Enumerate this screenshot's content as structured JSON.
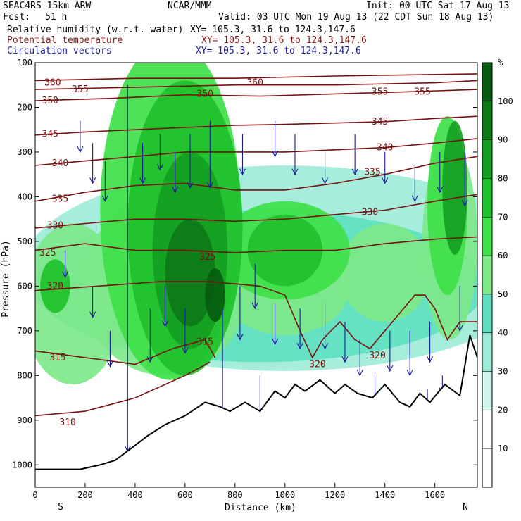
{
  "header": {
    "model": "SEAC4RS 15km ARW",
    "org": "NCAR/MMM",
    "init": "Init: 00 UTC Sat 17 Aug 13",
    "fcst_label": "Fcst:",
    "fcst_value": "51 h",
    "valid": "Valid: 03 UTC Mon 19 Aug 13 (22 CDT Sun 18 Aug 13)",
    "fields": [
      {
        "name": "Relative humidity (w.r.t. water)",
        "xy": "XY= 105.3, 31.6 to 124.3,147.6",
        "color": "#000000"
      },
      {
        "name": "Potential temperature",
        "xy": "XY= 105.3, 31.6 to 124.3,147.6",
        "color": "#8b1a1a"
      },
      {
        "name": "Circulation vectors",
        "xy": "XY= 105.3, 31.6 to 124.3,147.6",
        "color": "#1a1a9c"
      }
    ]
  },
  "chart_data": {
    "type": "heatmap",
    "title": "Relative humidity (w.r.t. water)",
    "xlabel": "Distance (km)",
    "ylabel": "Pressure (hPa)",
    "xlim": [
      0,
      1770
    ],
    "ylim": [
      1050,
      100
    ],
    "x_ticks": [
      0,
      200,
      400,
      600,
      800,
      1000,
      1200,
      1400,
      1600
    ],
    "y_ticks": [
      100,
      200,
      300,
      400,
      500,
      600,
      700,
      800,
      900,
      1000
    ],
    "x_end_labels": {
      "left": "S",
      "right": "N"
    },
    "colorbar": {
      "unit": "%",
      "levels": [
        10,
        20,
        30,
        40,
        50,
        60,
        70,
        80,
        90,
        100
      ],
      "colors": [
        "#ffffff",
        "#ffffff",
        "#cff5ec",
        "#9eebd9",
        "#5fdfc0",
        "#7ee88a",
        "#3fe04a",
        "#1fc02d",
        "#159f22",
        "#0c7a18",
        "#075c10"
      ]
    },
    "terrain_pressure": [
      {
        "x": 0,
        "p": 1010
      },
      {
        "x": 180,
        "p": 1010
      },
      {
        "x": 260,
        "p": 1000
      },
      {
        "x": 320,
        "p": 990
      },
      {
        "x": 380,
        "p": 965
      },
      {
        "x": 450,
        "p": 935
      },
      {
        "x": 520,
        "p": 910
      },
      {
        "x": 600,
        "p": 890
      },
      {
        "x": 680,
        "p": 860
      },
      {
        "x": 740,
        "p": 870
      },
      {
        "x": 780,
        "p": 880
      },
      {
        "x": 840,
        "p": 860
      },
      {
        "x": 900,
        "p": 880
      },
      {
        "x": 960,
        "p": 835
      },
      {
        "x": 1000,
        "p": 850
      },
      {
        "x": 1040,
        "p": 820
      },
      {
        "x": 1080,
        "p": 835
      },
      {
        "x": 1140,
        "p": 810
      },
      {
        "x": 1200,
        "p": 840
      },
      {
        "x": 1240,
        "p": 820
      },
      {
        "x": 1290,
        "p": 840
      },
      {
        "x": 1350,
        "p": 850
      },
      {
        "x": 1400,
        "p": 820
      },
      {
        "x": 1460,
        "p": 860
      },
      {
        "x": 1500,
        "p": 870
      },
      {
        "x": 1540,
        "p": 840
      },
      {
        "x": 1580,
        "p": 860
      },
      {
        "x": 1640,
        "p": 820
      },
      {
        "x": 1700,
        "p": 845
      },
      {
        "x": 1740,
        "p": 710
      },
      {
        "x": 1770,
        "p": 760
      }
    ],
    "theta_contours": [
      {
        "value": 310,
        "labels": [
          {
            "x": 130,
            "p": 905
          }
        ],
        "pts": [
          [
            0,
            890
          ],
          [
            200,
            880
          ],
          [
            400,
            850
          ],
          [
            600,
            800
          ],
          [
            700,
            770
          ]
        ]
      },
      {
        "value": 315,
        "labels": [
          {
            "x": 90,
            "p": 760
          },
          {
            "x": 680,
            "p": 725
          }
        ],
        "pts": [
          [
            0,
            745
          ],
          [
            200,
            760
          ],
          [
            400,
            775
          ],
          [
            550,
            740
          ],
          [
            680,
            720
          ],
          [
            720,
            760
          ]
        ]
      },
      {
        "value": 320,
        "labels": [
          {
            "x": 80,
            "p": 600
          },
          {
            "x": 1130,
            "p": 775
          },
          {
            "x": 1370,
            "p": 755
          }
        ],
        "pts": [
          [
            0,
            610
          ],
          [
            250,
            600
          ],
          [
            500,
            590
          ],
          [
            700,
            590
          ],
          [
            900,
            600
          ],
          [
            1000,
            620
          ],
          [
            1060,
            700
          ],
          [
            1110,
            760
          ],
          [
            1150,
            720
          ],
          [
            1220,
            680
          ],
          [
            1280,
            720
          ],
          [
            1340,
            740
          ],
          [
            1400,
            700
          ],
          [
            1460,
            660
          ],
          [
            1520,
            620
          ],
          [
            1560,
            620
          ],
          [
            1600,
            650
          ],
          [
            1650,
            720
          ],
          [
            1700,
            680
          ],
          [
            1770,
            680
          ]
        ]
      },
      {
        "value": 325,
        "labels": [
          {
            "x": 50,
            "p": 525
          },
          {
            "x": 690,
            "p": 535
          }
        ],
        "pts": [
          [
            0,
            520
          ],
          [
            200,
            505
          ],
          [
            400,
            520
          ],
          [
            600,
            520
          ],
          [
            800,
            525
          ],
          [
            1000,
            520
          ],
          [
            1200,
            520
          ],
          [
            1400,
            505
          ],
          [
            1600,
            495
          ],
          [
            1770,
            490
          ]
        ]
      },
      {
        "value": 330,
        "labels": [
          {
            "x": 80,
            "p": 465
          },
          {
            "x": 1340,
            "p": 435
          }
        ],
        "pts": [
          [
            0,
            470
          ],
          [
            200,
            460
          ],
          [
            400,
            450
          ],
          [
            600,
            450
          ],
          [
            800,
            455
          ],
          [
            1000,
            450
          ],
          [
            1200,
            440
          ],
          [
            1400,
            430
          ],
          [
            1600,
            410
          ],
          [
            1770,
            395
          ]
        ]
      },
      {
        "value": 335,
        "labels": [
          {
            "x": 100,
            "p": 405
          },
          {
            "x": 1350,
            "p": 345
          }
        ],
        "pts": [
          [
            0,
            410
          ],
          [
            200,
            390
          ],
          [
            400,
            375
          ],
          [
            600,
            370
          ],
          [
            800,
            385
          ],
          [
            1000,
            385
          ],
          [
            1200,
            370
          ],
          [
            1400,
            350
          ],
          [
            1600,
            325
          ],
          [
            1770,
            310
          ]
        ]
      },
      {
        "value": 340,
        "labels": [
          {
            "x": 100,
            "p": 325
          },
          {
            "x": 1400,
            "p": 290
          }
        ],
        "pts": [
          [
            0,
            330
          ],
          [
            200,
            320
          ],
          [
            400,
            310
          ],
          [
            600,
            300
          ],
          [
            800,
            300
          ],
          [
            1000,
            300
          ],
          [
            1200,
            295
          ],
          [
            1400,
            290
          ],
          [
            1600,
            280
          ],
          [
            1770,
            270
          ]
        ]
      },
      {
        "value": 345,
        "labels": [
          {
            "x": 60,
            "p": 260
          },
          {
            "x": 1380,
            "p": 232
          }
        ],
        "pts": [
          [
            0,
            262
          ],
          [
            200,
            255
          ],
          [
            400,
            250
          ],
          [
            600,
            245
          ],
          [
            800,
            240
          ],
          [
            1000,
            238
          ],
          [
            1200,
            235
          ],
          [
            1400,
            232
          ],
          [
            1600,
            225
          ],
          [
            1770,
            220
          ]
        ]
      },
      {
        "value": 350,
        "labels": [
          {
            "x": 60,
            "p": 185
          },
          {
            "x": 680,
            "p": 170
          }
        ],
        "pts": [
          [
            0,
            185
          ],
          [
            300,
            180
          ],
          [
            600,
            172
          ],
          [
            900,
            175
          ],
          [
            1200,
            170
          ],
          [
            1500,
            165
          ],
          [
            1770,
            160
          ]
        ]
      },
      {
        "value": 355,
        "labels": [
          {
            "x": 180,
            "p": 160
          },
          {
            "x": 1380,
            "p": 165
          },
          {
            "x": 1550,
            "p": 165
          }
        ],
        "pts": [
          [
            0,
            160
          ],
          [
            400,
            155
          ],
          [
            800,
            150
          ],
          [
            1200,
            150
          ],
          [
            1600,
            145
          ],
          [
            1770,
            140
          ]
        ]
      },
      {
        "value": 360,
        "labels": [
          {
            "x": 70,
            "p": 145
          },
          {
            "x": 880,
            "p": 145
          }
        ],
        "pts": [
          [
            0,
            140
          ],
          [
            400,
            135
          ],
          [
            800,
            135
          ],
          [
            1200,
            130
          ],
          [
            1770,
            125
          ]
        ]
      }
    ],
    "rh_blobs": [
      {
        "x": 1000,
        "p": 560,
        "rx": 1050,
        "rp": 230,
        "level": 30
      },
      {
        "x": 900,
        "p": 600,
        "rx": 900,
        "rp": 170,
        "level": 40
      },
      {
        "x": 150,
        "p": 640,
        "rx": 200,
        "rp": 180,
        "level": 50
      },
      {
        "x": 520,
        "p": 600,
        "rx": 330,
        "rp": 200,
        "level": 50
      },
      {
        "x": 1000,
        "p": 600,
        "rx": 260,
        "rp": 110,
        "level": 50
      },
      {
        "x": 1400,
        "p": 570,
        "rx": 180,
        "rp": 110,
        "level": 50
      },
      {
        "x": 1660,
        "p": 500,
        "rx": 110,
        "rp": 220,
        "level": 50
      },
      {
        "x": 540,
        "p": 430,
        "rx": 280,
        "rp": 380,
        "level": 60
      },
      {
        "x": 1000,
        "p": 520,
        "rx": 260,
        "rp": 110,
        "level": 60
      },
      {
        "x": 1650,
        "p": 420,
        "rx": 80,
        "rp": 200,
        "level": 60
      },
      {
        "x": 600,
        "p": 470,
        "rx": 230,
        "rp": 330,
        "level": 70
      },
      {
        "x": 1000,
        "p": 520,
        "rx": 150,
        "rp": 80,
        "level": 70
      },
      {
        "x": 80,
        "p": 600,
        "rx": 60,
        "rp": 60,
        "level": 70
      },
      {
        "x": 620,
        "p": 520,
        "rx": 150,
        "rp": 220,
        "level": 80
      },
      {
        "x": 1680,
        "p": 380,
        "rx": 50,
        "rp": 150,
        "level": 80
      },
      {
        "x": 620,
        "p": 570,
        "rx": 100,
        "rp": 120,
        "level": 90
      },
      {
        "x": 720,
        "p": 620,
        "rx": 40,
        "rp": 60,
        "level": 100
      }
    ],
    "wind_vectors": [
      {
        "x": 370,
        "p": 150,
        "dp": 820
      },
      {
        "x": 750,
        "p": 650,
        "dp": 260
      },
      {
        "x": 900,
        "p": 800,
        "dp": 170
      },
      {
        "x": 1360,
        "p": 800,
        "dp": 60
      },
      {
        "x": 1570,
        "p": 830,
        "dp": 70
      },
      {
        "x": 1630,
        "p": 800,
        "dp": 40
      },
      {
        "x": 180,
        "p": 230,
        "dp": 70
      },
      {
        "x": 230,
        "p": 280,
        "dp": 90
      },
      {
        "x": 280,
        "p": 320,
        "dp": 90
      },
      {
        "x": 430,
        "p": 280,
        "dp": 90
      },
      {
        "x": 500,
        "p": 260,
        "dp": 80
      },
      {
        "x": 560,
        "p": 300,
        "dp": 90
      },
      {
        "x": 620,
        "p": 260,
        "dp": 120
      },
      {
        "x": 700,
        "p": 230,
        "dp": 150
      },
      {
        "x": 830,
        "p": 260,
        "dp": 90
      },
      {
        "x": 960,
        "p": 230,
        "dp": 80
      },
      {
        "x": 1040,
        "p": 260,
        "dp": 90
      },
      {
        "x": 1160,
        "p": 300,
        "dp": 70
      },
      {
        "x": 1280,
        "p": 260,
        "dp": 90
      },
      {
        "x": 1400,
        "p": 300,
        "dp": 70
      },
      {
        "x": 1520,
        "p": 330,
        "dp": 80
      },
      {
        "x": 1620,
        "p": 300,
        "dp": 90
      },
      {
        "x": 1720,
        "p": 300,
        "dp": 120
      },
      {
        "x": 120,
        "p": 520,
        "dp": 60
      },
      {
        "x": 230,
        "p": 600,
        "dp": 70
      },
      {
        "x": 300,
        "p": 700,
        "dp": 80
      },
      {
        "x": 460,
        "p": 650,
        "dp": 120
      },
      {
        "x": 520,
        "p": 600,
        "dp": 90
      },
      {
        "x": 600,
        "p": 650,
        "dp": 100
      },
      {
        "x": 820,
        "p": 600,
        "dp": 120
      },
      {
        "x": 880,
        "p": 550,
        "dp": 100
      },
      {
        "x": 960,
        "p": 640,
        "dp": 90
      },
      {
        "x": 1060,
        "p": 650,
        "dp": 90
      },
      {
        "x": 1160,
        "p": 640,
        "dp": 100
      },
      {
        "x": 1240,
        "p": 680,
        "dp": 90
      },
      {
        "x": 1300,
        "p": 720,
        "dp": 80
      },
      {
        "x": 1420,
        "p": 700,
        "dp": 90
      },
      {
        "x": 1500,
        "p": 700,
        "dp": 100
      },
      {
        "x": 1580,
        "p": 680,
        "dp": 90
      },
      {
        "x": 1700,
        "p": 600,
        "dp": 100
      }
    ]
  }
}
